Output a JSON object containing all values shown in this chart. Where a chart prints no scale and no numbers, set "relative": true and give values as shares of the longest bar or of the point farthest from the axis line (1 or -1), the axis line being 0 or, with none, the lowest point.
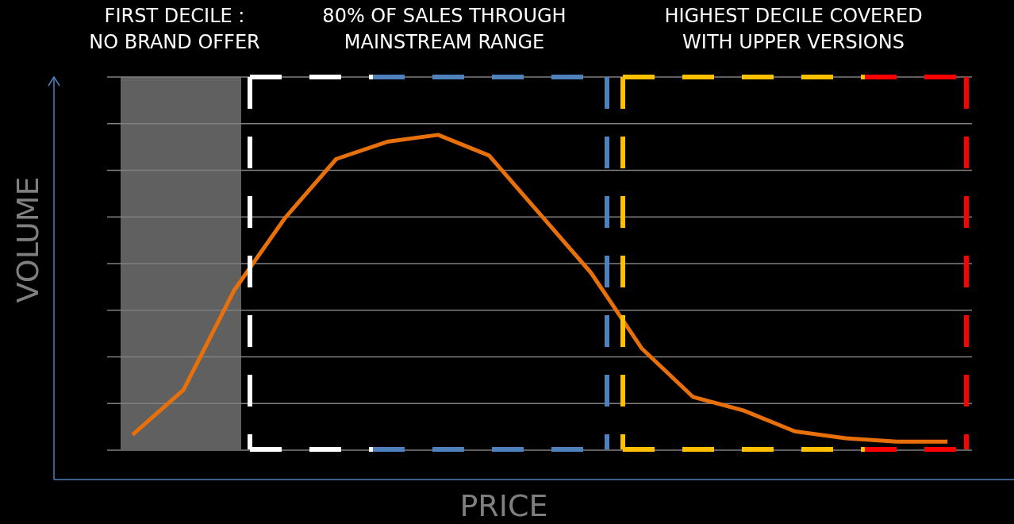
{
  "chart_data": {
    "type": "line",
    "relative": true,
    "xlabel": "PRICE",
    "ylabel": "VOLUME",
    "categories": [
      null,
      null,
      null,
      null,
      null,
      null,
      null,
      null,
      null,
      null,
      null,
      null,
      null,
      null,
      null,
      null,
      null
    ],
    "series": [
      {
        "color": "#e8700a",
        "values": [
          0.13,
          0.26,
          0.55,
          0.76,
          0.93,
          0.98,
          1,
          0.94,
          0.77,
          0.6,
          0.38,
          0.24,
          0.2,
          0.14,
          0.12,
          0.11,
          0.11
        ]
      }
    ],
    "grid": "y",
    "marker": "none",
    "line_style": "solid",
    "legend": false,
    "annotations": [
      "FIRST DECILE :\nNO BRAND OFFER",
      "80% OF SALES THROUGH\nMAINSTREAM RANGE",
      "HIGHEST DECILE COVERED\nWITH UPPER VERSIONS"
    ]
  }
}
